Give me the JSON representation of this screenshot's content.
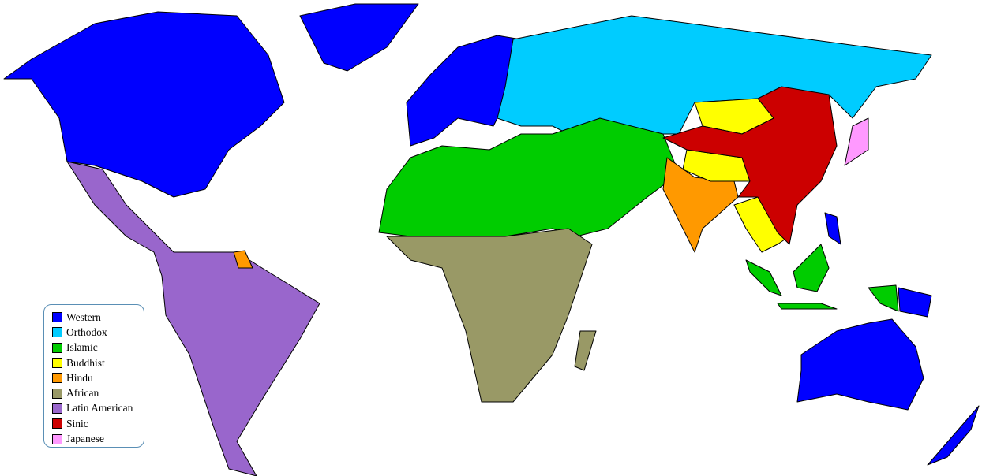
{
  "legend": {
    "items": [
      {
        "label": "Western",
        "color": "#0000ff"
      },
      {
        "label": "Orthodox",
        "color": "#00ccff"
      },
      {
        "label": "Islamic",
        "color": "#00cc00"
      },
      {
        "label": "Buddhist",
        "color": "#ffff00"
      },
      {
        "label": "Hindu",
        "color": "#ff9900"
      },
      {
        "label": "African",
        "color": "#999966"
      },
      {
        "label": "Latin American",
        "color": "#9966cc"
      },
      {
        "label": "Sinic",
        "color": "#cc0000"
      },
      {
        "label": "Japanese",
        "color": "#ff99ff"
      }
    ]
  }
}
